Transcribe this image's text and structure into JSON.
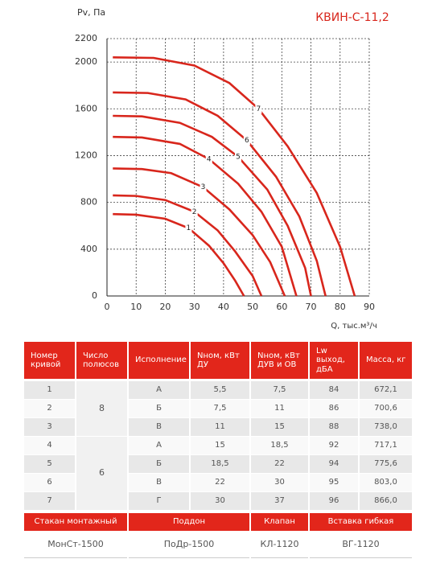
{
  "chart_data": {
    "type": "line",
    "title": "КВИН-С-11,2",
    "y_label": "Pv, Па",
    "x_label": "Q, тыс.м³/ч",
    "xlim": [
      0,
      90
    ],
    "xticks": [
      0,
      10,
      20,
      30,
      40,
      50,
      60,
      70,
      80,
      90
    ],
    "ylim": [
      0,
      2200
    ],
    "yticks": [
      0,
      400,
      800,
      1200,
      1600,
      2000,
      2200
    ],
    "grid": true,
    "series": [
      {
        "name": "1",
        "color": "#d8261c",
        "x": [
          2,
          10,
          20,
          28,
          35,
          40,
          44,
          47
        ],
        "values": [
          700,
          695,
          660,
          580,
          430,
          280,
          130,
          0
        ]
      },
      {
        "name": "2",
        "color": "#d8261c",
        "x": [
          2,
          10,
          20,
          30,
          38,
          44,
          50,
          53
        ],
        "values": [
          860,
          855,
          820,
          720,
          560,
          380,
          170,
          0
        ]
      },
      {
        "name": "3",
        "color": "#d8261c",
        "x": [
          2,
          12,
          22,
          33,
          42,
          50,
          56,
          61
        ],
        "values": [
          1090,
          1085,
          1050,
          930,
          740,
          520,
          290,
          0
        ]
      },
      {
        "name": "4",
        "color": "#d8261c",
        "x": [
          2,
          12,
          25,
          35,
          45,
          53,
          60,
          65
        ],
        "values": [
          1360,
          1355,
          1300,
          1170,
          960,
          720,
          420,
          0
        ]
      },
      {
        "name": "5",
        "color": "#d8261c",
        "x": [
          2,
          12,
          25,
          36,
          45,
          55,
          62,
          68,
          70
        ],
        "values": [
          1540,
          1535,
          1480,
          1360,
          1190,
          910,
          600,
          240,
          0
        ]
      },
      {
        "name": "6",
        "color": "#d8261c",
        "x": [
          2,
          14,
          27,
          38,
          48,
          58,
          66,
          72,
          75
        ],
        "values": [
          1740,
          1735,
          1680,
          1540,
          1330,
          1020,
          680,
          300,
          0
        ]
      },
      {
        "name": "7",
        "color": "#d8261c",
        "x": [
          2,
          16,
          30,
          42,
          52,
          62,
          72,
          80,
          85
        ],
        "values": [
          2040,
          2035,
          1970,
          1820,
          1600,
          1280,
          880,
          420,
          0
        ]
      }
    ]
  },
  "table": {
    "header": [
      "Номер кривой",
      "Число полюсов",
      "Исполнение",
      "Nном, кВт ДУ",
      "Nном, кВт ДУВ и ОВ",
      "Lw выход, дБА",
      "Масса, кг"
    ],
    "rows": [
      [
        "1",
        "8",
        "А",
        "5,5",
        "7,5",
        "84",
        "672,1"
      ],
      [
        "2",
        null,
        "Б",
        "7,5",
        "11",
        "86",
        "700,6"
      ],
      [
        "3",
        null,
        "В",
        "11",
        "15",
        "88",
        "738,0"
      ],
      [
        "4",
        "6",
        "А",
        "15",
        "18,5",
        "92",
        "717,1"
      ],
      [
        "5",
        null,
        "Б",
        "18,5",
        "22",
        "94",
        "775,6"
      ],
      [
        "6",
        null,
        "В",
        "22",
        "30",
        "95",
        "803,0"
      ],
      [
        "7",
        null,
        "Г",
        "30",
        "37",
        "96",
        "866,0"
      ]
    ]
  },
  "accessories": {
    "header": [
      "Стакан монтажный",
      "Поддон",
      "Клапан",
      "Вставка гибкая"
    ],
    "values": [
      "МонСт-1500",
      "ПоДр-1500",
      "КЛ-1120",
      "ВГ-1120"
    ]
  }
}
